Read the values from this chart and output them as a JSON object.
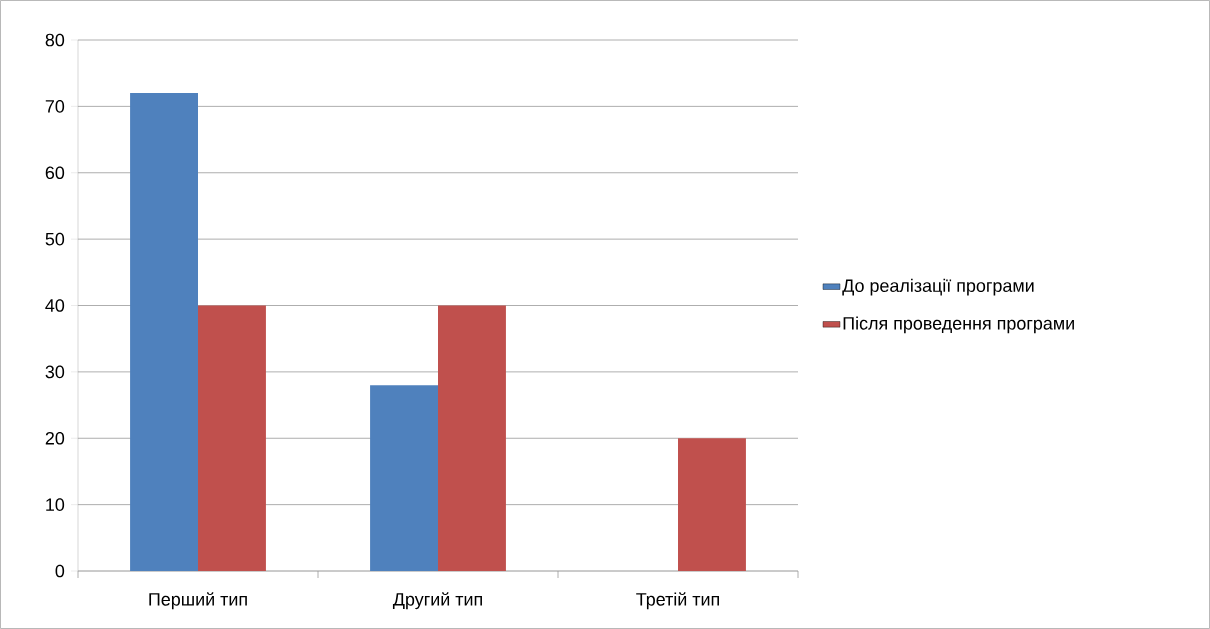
{
  "chart_data": {
    "type": "bar",
    "categories": [
      "Перший тип",
      "Другий тип",
      "Третій тип"
    ],
    "series": [
      {
        "name": "До реалізації програми",
        "color": "#4f81bd",
        "values": [
          72,
          28,
          0
        ]
      },
      {
        "name": "Після проведення програми",
        "color": "#c0504d",
        "values": [
          40,
          40,
          20
        ]
      }
    ],
    "ylim": [
      0,
      80
    ],
    "yticks": [
      0,
      10,
      20,
      30,
      40,
      50,
      60,
      70,
      80
    ],
    "grid": "y",
    "legend": "right"
  }
}
